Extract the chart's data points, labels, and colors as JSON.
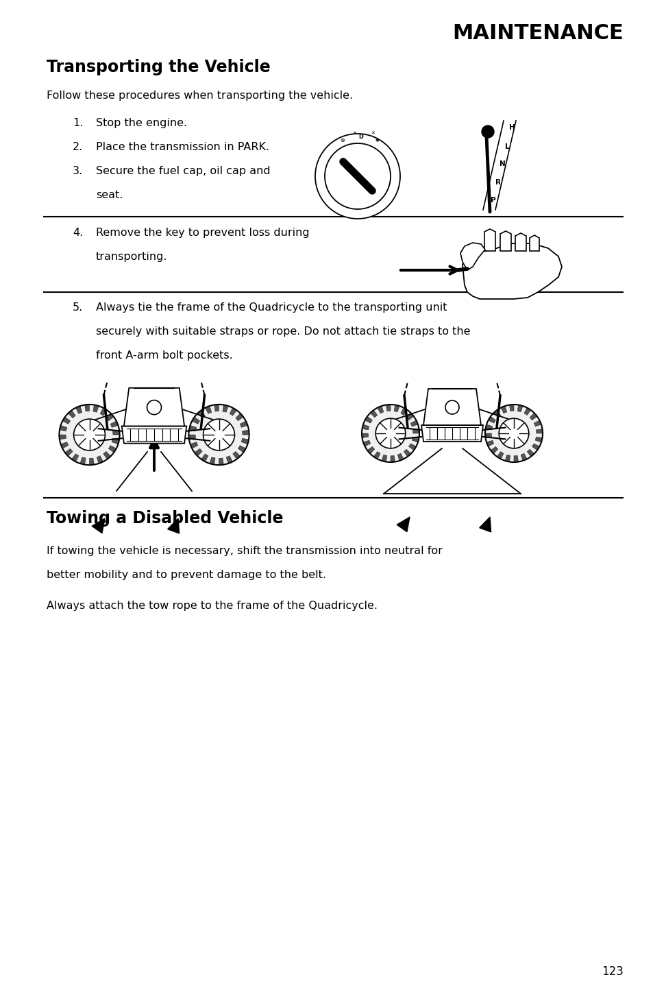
{
  "title": "MAINTENANCE",
  "section1_title": "Transporting the Vehicle",
  "section1_intro": "Follow these procedures when transporting the vehicle.",
  "item1": "Stop the engine.",
  "item2": "Place the transmission in PARK.",
  "item3a": "Secure the fuel cap, oil cap and",
  "item3b": "seat.",
  "item4a": "Remove the key to prevent loss during",
  "item4b": "transporting.",
  "item5a": "Always tie the frame of the Quadricycle to the transporting unit",
  "item5b": "securely with suitable straps or rope. Do not attach tie straps to the",
  "item5c": "front A-arm bolt pockets.",
  "section2_title": "Towing a Disabled Vehicle",
  "s2p1a": "If towing the vehicle is necessary, shift the transmission into neutral for",
  "s2p1b": "better mobility and to prevent damage to the belt.",
  "s2p2": "Always attach the tow rope to the frame of the Quadricycle.",
  "page_number": "123",
  "bg_color": "#ffffff",
  "text_color": "#000000",
  "ML": 0.68,
  "MR": 9.1,
  "font_body": 11.5,
  "font_heading1": 20,
  "font_heading2": 17
}
